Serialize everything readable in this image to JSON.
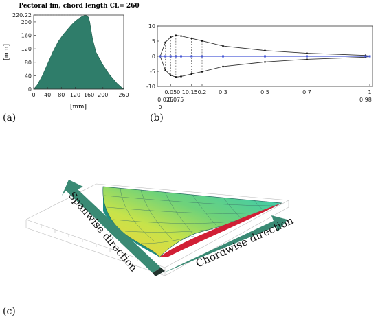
{
  "panel_labels": {
    "a": "(a)",
    "b": "(b)",
    "c": "(c)"
  },
  "colors": {
    "fin_fill": "#2f7d6a",
    "outline": "#333333",
    "spar": "#4a5bd6",
    "arrow_green": "#3a8a74",
    "arrow_dark": "#23332e",
    "surface_cyan": "#31c9b8",
    "surface_yellow": "#f2e94a",
    "surface_red": "#d11f35"
  },
  "chart_data": [
    {
      "type": "area",
      "title": "Pectoral fin, chord length CL= 260",
      "xlabel": "[mm]",
      "ylabel": "[mm]",
      "xlim": [
        0,
        260
      ],
      "ylim": [
        0,
        220.22
      ],
      "x_ticks": [
        "0",
        "40",
        "80",
        "120",
        "160",
        "200",
        "260"
      ],
      "y_ticks": [
        "0",
        "40",
        "80",
        "120",
        "160",
        "200",
        "220.22"
      ],
      "reference_line": {
        "label": "220.22",
        "x": 150,
        "y": 220.22
      },
      "x": [
        0,
        10,
        25,
        40,
        55,
        70,
        85,
        100,
        110,
        120,
        130,
        140,
        150,
        158,
        162,
        165,
        170,
        180,
        200,
        220,
        240,
        255,
        260
      ],
      "y": [
        0,
        12,
        40,
        75,
        110,
        140,
        162,
        180,
        192,
        202,
        210,
        216,
        220.22,
        214,
        200,
        180,
        150,
        110,
        72,
        42,
        18,
        4,
        0
      ]
    },
    {
      "type": "line",
      "x_ticks_upper": [
        "0.05",
        "0.1",
        "0.15",
        "0.2",
        "0.3",
        "0.5",
        "0.7",
        "1"
      ],
      "x_ticks_lower": [
        "0.025",
        "0.075",
        "0.98"
      ],
      "x_ticks_extra": [
        "0"
      ],
      "y_ticks": [
        "10",
        "5",
        "0",
        "-5",
        "-10"
      ],
      "ylim": [
        -10,
        10
      ],
      "x": [
        0,
        0.025,
        0.05,
        0.075,
        0.1,
        0.15,
        0.2,
        0.3,
        0.5,
        0.7,
        0.98,
        1
      ],
      "series": [
        {
          "values": [
            0,
            4.6,
            6.3,
            6.9,
            6.7,
            5.9,
            5.1,
            3.4,
            1.9,
            1.0,
            0.3,
            0
          ]
        },
        {
          "values": [
            0,
            -4.6,
            -6.3,
            -6.9,
            -6.7,
            -5.9,
            -5.1,
            -3.4,
            -1.9,
            -1.0,
            -0.3,
            0
          ]
        }
      ]
    }
  ],
  "surface_labels": {
    "spanwise": "Spanwise direction",
    "chordwise": "Chordwise direction"
  }
}
